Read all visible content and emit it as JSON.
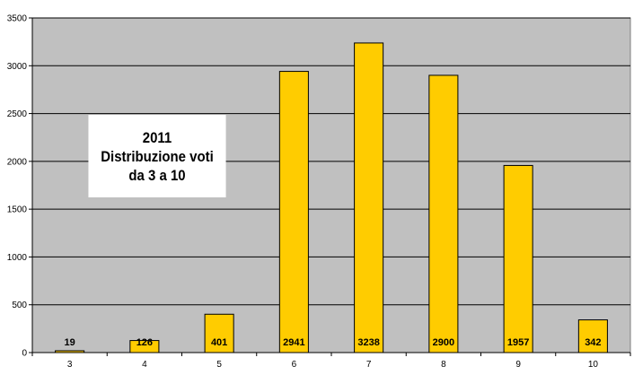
{
  "chart_data": {
    "type": "bar",
    "title_lines": [
      "2011",
      "Distribuzione voti",
      "da 3 a 10"
    ],
    "categories": [
      "3",
      "4",
      "5",
      "6",
      "7",
      "8",
      "9",
      "10"
    ],
    "values": [
      19,
      126,
      401,
      2941,
      3238,
      2900,
      1957,
      342
    ],
    "data_labels": [
      "19",
      "126",
      "401",
      "2941",
      "3238",
      "2900",
      "1957",
      "342"
    ],
    "ylim": [
      0,
      3500
    ],
    "yticks": [
      "0",
      "500",
      "1000",
      "1500",
      "2000",
      "2500",
      "3000",
      "3500"
    ],
    "xlabel": "",
    "ylabel": "",
    "grid": true,
    "legend": "none",
    "colors": {
      "plot_background": "#c0c0c0",
      "bar_fill": "#ffcc00",
      "bar_stroke": "#000000",
      "gridline": "#000000"
    }
  }
}
